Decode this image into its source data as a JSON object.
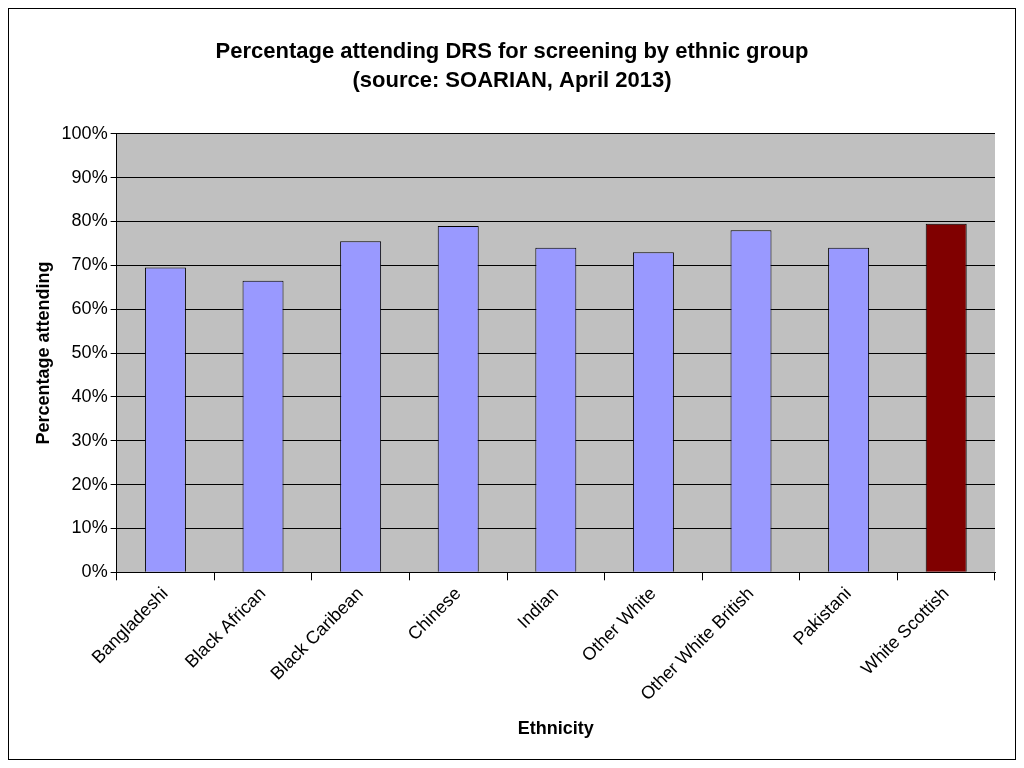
{
  "chart_data": {
    "type": "bar",
    "title": "Percentage attending DRS for screening by ethnic group",
    "subtitle": "(source: SOARIAN, April 2013)",
    "x_label": "Ethnicity",
    "y_label": "Percentage attending",
    "categories": [
      "Bangladeshi",
      "Black African",
      "Black Caribean",
      "Chinese",
      "Indian",
      "Other White",
      "Other White British",
      "Pakistani",
      "White Scottish"
    ],
    "values": [
      69.5,
      66.5,
      75.5,
      79,
      74,
      73,
      78,
      74,
      79.5
    ],
    "colors": [
      "#9999ff",
      "#9999ff",
      "#9999ff",
      "#9999ff",
      "#9999ff",
      "#9999ff",
      "#9999ff",
      "#9999ff",
      "#800000"
    ],
    "ylim": [
      0,
      100
    ],
    "yticks": [
      {
        "value": 0,
        "label": "0%"
      },
      {
        "value": 10,
        "label": "10%"
      },
      {
        "value": 20,
        "label": "20%"
      },
      {
        "value": 30,
        "label": "30%"
      },
      {
        "value": 40,
        "label": "40%"
      },
      {
        "value": 50,
        "label": "50%"
      },
      {
        "value": 60,
        "label": "60%"
      },
      {
        "value": 70,
        "label": "70%"
      },
      {
        "value": 80,
        "label": "80%"
      },
      {
        "value": 90,
        "label": "90%"
      },
      {
        "value": 100,
        "label": "100%"
      }
    ],
    "grid": true
  }
}
